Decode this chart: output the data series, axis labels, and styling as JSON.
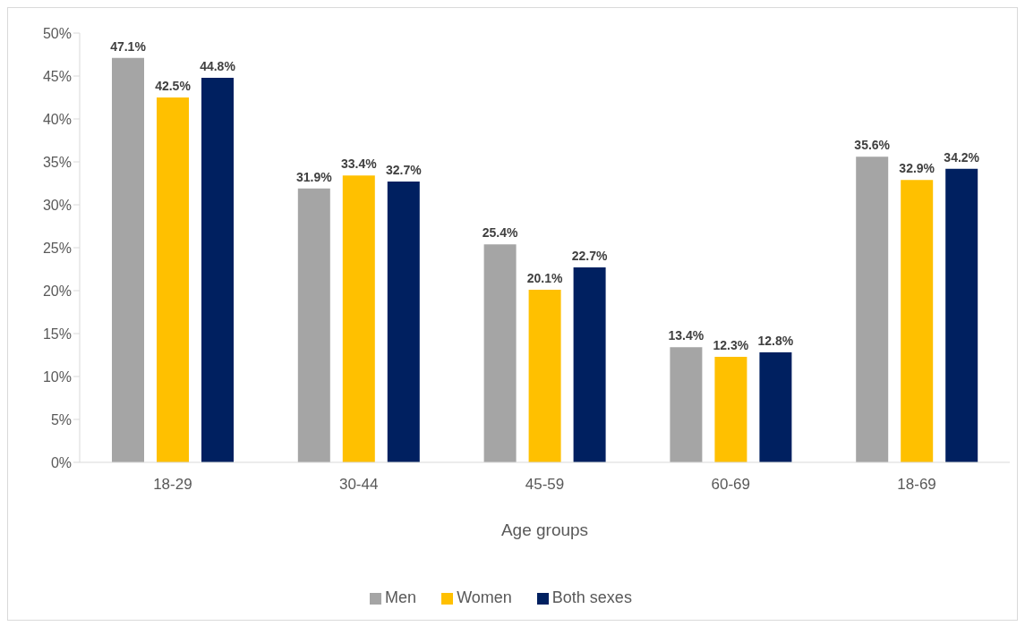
{
  "chart_data": {
    "type": "bar",
    "xlabel": "Age groups",
    "categories": [
      "18-29",
      "30-44",
      "45-59",
      "60-69",
      "18-69"
    ],
    "series": [
      {
        "name": "Men",
        "color": "#a5a5a5",
        "values": [
          47.1,
          31.9,
          25.4,
          13.4,
          35.6
        ],
        "value_labels": [
          "47.1%",
          "31.9%",
          "25.4%",
          "13.4%",
          "35.6%"
        ]
      },
      {
        "name": "Women",
        "color": "#ffc000",
        "values": [
          42.5,
          33.4,
          20.1,
          12.3,
          32.9
        ],
        "value_labels": [
          "42.5%",
          "33.4%",
          "20.1%",
          "12.3%",
          "32.9%"
        ]
      },
      {
        "name": "Both sexes",
        "color": "#002060",
        "values": [
          44.8,
          32.7,
          22.7,
          12.8,
          34.2
        ],
        "value_labels": [
          "44.8%",
          "32.7%",
          "22.7%",
          "12.8%",
          "34.2%"
        ]
      }
    ],
    "ylim": [
      0,
      50
    ],
    "yticks": [
      {
        "value": 0,
        "label": "0%"
      },
      {
        "value": 5,
        "label": "5%"
      },
      {
        "value": 10,
        "label": "10%"
      },
      {
        "value": 15,
        "label": "15%"
      },
      {
        "value": 20,
        "label": "20%"
      },
      {
        "value": 25,
        "label": "25%"
      },
      {
        "value": 30,
        "label": "30%"
      },
      {
        "value": 35,
        "label": "35%"
      },
      {
        "value": 40,
        "label": "40%"
      },
      {
        "value": 45,
        "label": "45%"
      },
      {
        "value": 50,
        "label": "50%"
      }
    ],
    "legend": "bottom"
  }
}
